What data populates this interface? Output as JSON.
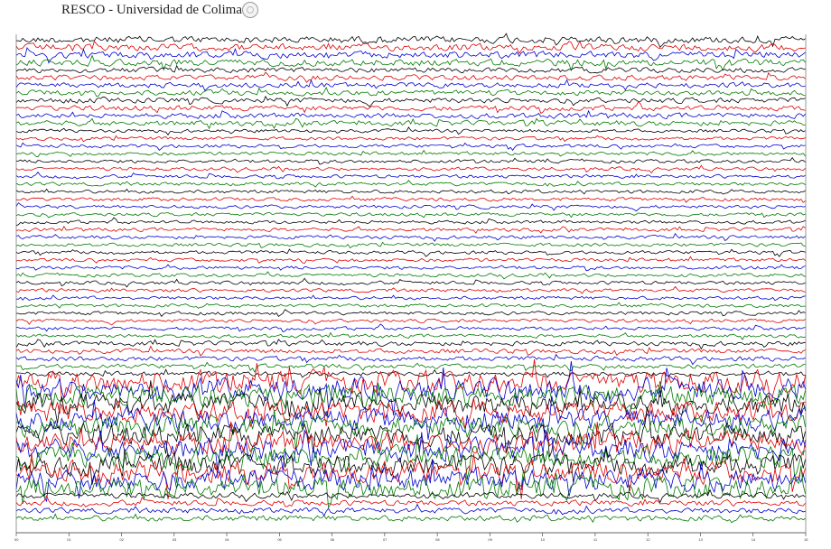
{
  "header": {
    "title": "RESCO - Universidad de Colima",
    "seal_icon": "university-seal-icon"
  },
  "chart_data": {
    "type": "line",
    "title": "RESCO - Universidad de Colima",
    "xlabel": "",
    "ylabel": "",
    "xlim": [
      0,
      15
    ],
    "x_ticks": [
      "00",
      "01",
      "02",
      "03",
      "04",
      "05",
      "06",
      "07",
      "08",
      "09",
      "10",
      "11",
      "12",
      "13",
      "14",
      "15"
    ],
    "row_count": 64,
    "grid": false,
    "legend": "none",
    "series_colors": [
      "#000000",
      "#e00000",
      "#0000d0",
      "#007a00"
    ],
    "segments": [
      {
        "rows": [
          0,
          3
        ],
        "amplitude": 0.6
      },
      {
        "rows": [
          4,
          11
        ],
        "amplitude": 0.45
      },
      {
        "rows": [
          12,
          39
        ],
        "amplitude": 0.3
      },
      {
        "rows": [
          40,
          44
        ],
        "amplitude": 0.4
      },
      {
        "rows": [
          45,
          59
        ],
        "amplitude": 1.9
      },
      {
        "rows": [
          60,
          63
        ],
        "amplitude": 0.5
      }
    ]
  }
}
